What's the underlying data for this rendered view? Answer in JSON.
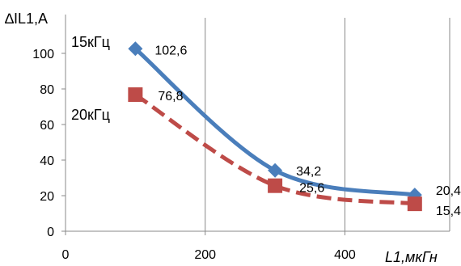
{
  "chart_data": {
    "type": "line",
    "title": "∆IL1,A",
    "xlabel": "L1,мкГн",
    "ylabel": "",
    "xlim": [
      0,
      550
    ],
    "ylim": [
      0,
      120
    ],
    "x_ticks": [
      0,
      200,
      400
    ],
    "y_ticks": [
      0,
      20,
      40,
      60,
      80,
      100
    ],
    "grid": "vertical",
    "series": [
      {
        "name": "15кГц",
        "color": "#4a7ebb",
        "marker": "diamond",
        "line_style": "solid",
        "x": [
          100,
          300,
          500
        ],
        "y": [
          102.6,
          34.2,
          20.4
        ],
        "labels": [
          "102,6",
          "34,2",
          "20,4"
        ]
      },
      {
        "name": "20кГц",
        "color": "#be4b48",
        "marker": "square",
        "line_style": "dashed",
        "x": [
          100,
          300,
          500
        ],
        "y": [
          76.8,
          25.6,
          15.4
        ],
        "labels": [
          "76,8",
          "25,6",
          "15,4"
        ]
      }
    ]
  }
}
